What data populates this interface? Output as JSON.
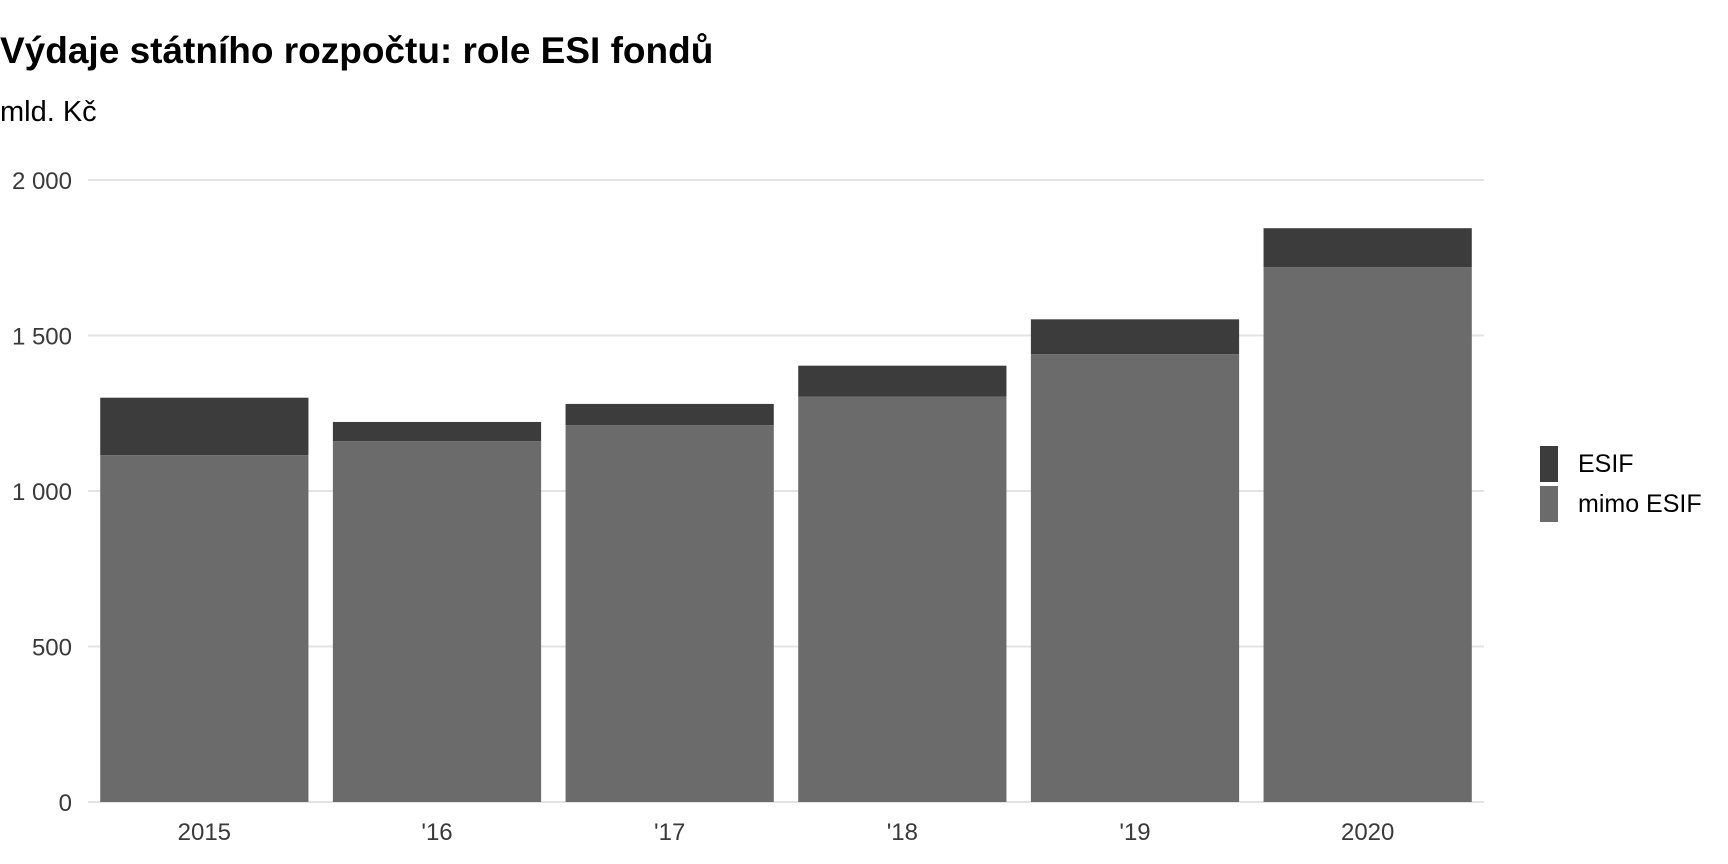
{
  "chart_data": {
    "type": "bar",
    "stacked": true,
    "title": "Výdaje státního rozpočtu: role ESI fondů",
    "subtitle": "mld. Kč",
    "xlabel": "",
    "ylabel": "",
    "categories": [
      "2015",
      "'16",
      "'17",
      "'18",
      "'19",
      "2020"
    ],
    "series": [
      {
        "name": "mimo ESIF",
        "color": "#6b6b6b",
        "values": [
          1115,
          1160,
          1212,
          1303,
          1440,
          1720
        ]
      },
      {
        "name": "ESIF",
        "color": "#3c3c3c",
        "values": [
          185,
          62,
          68,
          100,
          112,
          125
        ]
      }
    ],
    "ylim": [
      0,
      2000
    ],
    "yticks": [
      0,
      500,
      1000,
      1500,
      2000
    ],
    "ytick_labels": [
      "0",
      "500",
      "1 000",
      "1 500",
      "2 000"
    ],
    "grid": true,
    "legend_position": "right",
    "legend_order": [
      "ESIF",
      "mimo ESIF"
    ]
  }
}
